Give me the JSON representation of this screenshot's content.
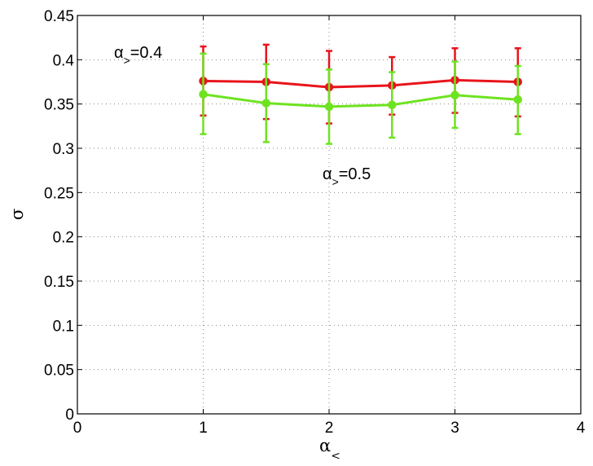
{
  "chart_data": {
    "type": "line",
    "x": [
      1,
      1.5,
      2,
      2.5,
      3,
      3.5
    ],
    "xlim": [
      0,
      4
    ],
    "ylim": [
      0,
      0.45
    ],
    "xticks": [
      "0",
      "1",
      "2",
      "3",
      "4"
    ],
    "yticks": [
      "0",
      "0.05",
      "0.1",
      "0.15",
      "0.2",
      "0.25",
      "0.3",
      "0.35",
      "0.4",
      "0.45"
    ],
    "xlabel": {
      "symbol": "α",
      "subscript": "<"
    },
    "ylabel": "σ",
    "grid": true,
    "legend": "none",
    "series": [
      {
        "color": "#e8141b",
        "y": [
          0.376,
          0.375,
          0.369,
          0.371,
          0.377,
          0.375
        ],
        "err_low": [
          0.337,
          0.333,
          0.328,
          0.338,
          0.34,
          0.336
        ],
        "err_high": [
          0.415,
          0.417,
          0.41,
          0.403,
          0.413,
          0.413
        ],
        "label": {
          "symbol": "α",
          "subscript": ">",
          "text": "=0.4"
        }
      },
      {
        "color": "#6ee321",
        "y": [
          0.361,
          0.351,
          0.347,
          0.349,
          0.36,
          0.355
        ],
        "err_low": [
          0.316,
          0.307,
          0.305,
          0.312,
          0.323,
          0.316
        ],
        "err_high": [
          0.407,
          0.395,
          0.389,
          0.386,
          0.398,
          0.393
        ],
        "label": {
          "symbol": "α",
          "subscript": ">",
          "text": "=0.5"
        }
      }
    ]
  }
}
